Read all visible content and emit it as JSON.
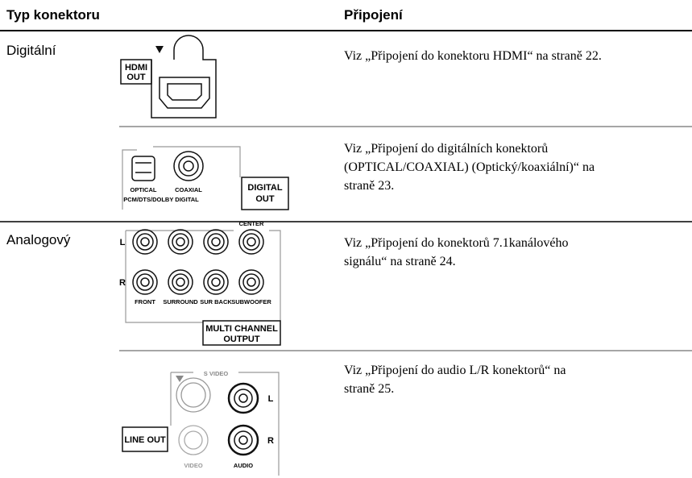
{
  "header": {
    "columns": [
      "Typ konektoru",
      "Připojení"
    ]
  },
  "rows": [
    {
      "type": "Digitální",
      "labels": [
        "HDMI",
        "OUT"
      ],
      "description": [
        "Viz „Připojení do konektoru HDMI“ na straně 22."
      ]
    },
    {
      "labels": [
        "OPTICAL",
        "COAXIAL",
        "PCM/DTS/DOLBY DIGITAL",
        "DIGITAL",
        "OUT"
      ],
      "description": [
        "Viz „Připojení do digitálních konektorů",
        "(OPTICAL/COAXIAL) (Optický/koaxiální)“ na",
        "straně 23."
      ]
    },
    {
      "type": "Analogový",
      "labels": [
        "CENTER",
        "L",
        "R",
        "FRONT",
        "SURROUND",
        "SUR BACK",
        "SUBWOOFER",
        "MULTI CHANNEL",
        "OUTPUT"
      ],
      "description": [
        "Viz „Připojení do konektorů 7.1kanálového",
        "signálu“ na straně 24."
      ]
    },
    {
      "labels": [
        "S VIDEO",
        "L",
        "R",
        "LINE OUT",
        "VIDEO",
        "AUDIO"
      ],
      "description": [
        "Viz „Připojení do audio L/R konektorů“ na",
        "straně 25."
      ]
    }
  ]
}
